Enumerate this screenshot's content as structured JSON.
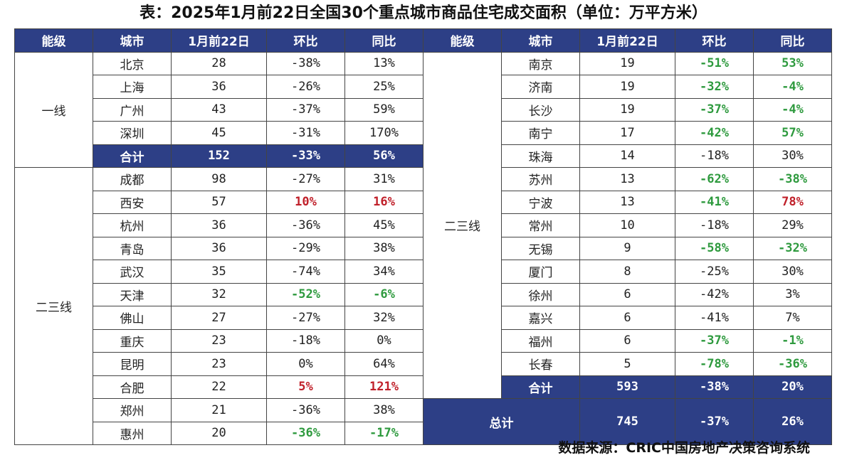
{
  "title": "表：2025年1月前22日全国30个重点城市商品住宅成交面积（单位：万平方米）",
  "headers": [
    "能级",
    "城市",
    "1月前22日",
    "环比",
    "同比"
  ],
  "left": {
    "tier1_label": "一线",
    "tier23_label": "二三线",
    "tier1_rows": [
      [
        "北京",
        "28",
        "-38%",
        "13%"
      ],
      [
        "上海",
        "36",
        "-26%",
        "25%"
      ],
      [
        "广州",
        "43",
        "-37%",
        "59%"
      ],
      [
        "深圳",
        "45",
        "-31%",
        "170%"
      ]
    ],
    "tier1_total": [
      "合计",
      "152",
      "-33%",
      "56%"
    ],
    "tier23_rows": [
      [
        "成都",
        "98",
        "-27%",
        "31%"
      ],
      [
        "西安",
        "57",
        "10%",
        "16%"
      ],
      [
        "杭州",
        "36",
        "-36%",
        "45%"
      ],
      [
        "青岛",
        "36",
        "-29%",
        "38%"
      ],
      [
        "武汉",
        "35",
        "-74%",
        "34%"
      ],
      [
        "天津",
        "32",
        "-52%",
        "-6%"
      ],
      [
        "佛山",
        "27",
        "-27%",
        "32%"
      ],
      [
        "重庆",
        "23",
        "-18%",
        "0%"
      ],
      [
        "昆明",
        "23",
        "0%",
        "64%"
      ],
      [
        "合肥",
        "22",
        "5%",
        "121%"
      ],
      [
        "郑州",
        "21",
        "-36%",
        "38%"
      ],
      [
        "惠州",
        "20",
        "-36%",
        "-17%"
      ]
    ]
  },
  "right": {
    "tier23_label": "二三线",
    "rows": [
      [
        "南京",
        "19",
        "-51%",
        "53%"
      ],
      [
        "济南",
        "19",
        "-32%",
        "-4%"
      ],
      [
        "长沙",
        "19",
        "-37%",
        "-4%"
      ],
      [
        "南宁",
        "17",
        "-42%",
        "57%"
      ],
      [
        "珠海",
        "14",
        "-18%",
        "30%"
      ],
      [
        "苏州",
        "13",
        "-62%",
        "-38%"
      ],
      [
        "宁波",
        "13",
        "-41%",
        "78%"
      ],
      [
        "常州",
        "10",
        "-18%",
        "29%"
      ],
      [
        "无锡",
        "9",
        "-58%",
        "-32%"
      ],
      [
        "厦门",
        "8",
        "-25%",
        "30%"
      ],
      [
        "徐州",
        "6",
        "-42%",
        "3%"
      ],
      [
        "嘉兴",
        "6",
        "-41%",
        "7%"
      ],
      [
        "福州",
        "6",
        "-37%",
        "-1%"
      ],
      [
        "长春",
        "5",
        "-78%",
        "-36%"
      ]
    ],
    "total": [
      "合计",
      "593",
      "-38%",
      "20%"
    ],
    "grand_total": [
      "总计",
      "745",
      "-37%",
      "26%"
    ]
  },
  "source": "数据来源：CRIC中国房地产决策咨询系统",
  "colors": {
    "header_bg": "#2d3f86",
    "green": "#2e9a3e",
    "red": "#c0202a"
  }
}
